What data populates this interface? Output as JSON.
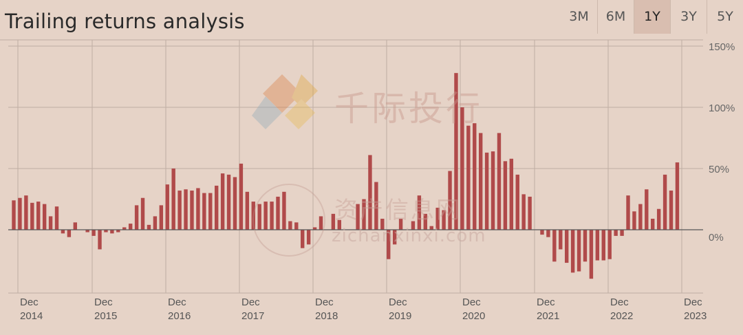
{
  "header": {
    "title": "Trailing returns analysis",
    "tabs": [
      {
        "label": "3M",
        "active": false
      },
      {
        "label": "6M",
        "active": false
      },
      {
        "label": "1Y",
        "active": true
      },
      {
        "label": "3Y",
        "active": false
      },
      {
        "label": "5Y",
        "active": false
      }
    ]
  },
  "watermark": {
    "line1": "千际投行",
    "line2": "资产信息网",
    "line3": "zichanxinxi.com"
  },
  "colors": {
    "bar": "#b04a4a",
    "grid": "#bfaea3",
    "axis": "#555555",
    "background": "#e6d3c7"
  },
  "chart_data": {
    "type": "bar",
    "title": "Trailing returns analysis",
    "xlabel": "",
    "ylabel": "",
    "ylim": [
      -50,
      150
    ],
    "yticks": [
      0,
      50,
      100,
      150
    ],
    "ytick_labels": [
      "0%",
      "50%",
      "100%",
      "150%"
    ],
    "grid": true,
    "x_tick_labels": [
      {
        "month": "Dec",
        "year": "2014"
      },
      {
        "month": "Dec",
        "year": "2015"
      },
      {
        "month": "Dec",
        "year": "2016"
      },
      {
        "month": "Dec",
        "year": "2017"
      },
      {
        "month": "Dec",
        "year": "2018"
      },
      {
        "month": "Dec",
        "year": "2019"
      },
      {
        "month": "Dec",
        "year": "2020"
      },
      {
        "month": "Dec",
        "year": "2021"
      },
      {
        "month": "Dec",
        "year": "2022"
      },
      {
        "month": "Dec",
        "year": "2023"
      }
    ],
    "start": "2014-10",
    "series": [
      {
        "values": [
          24,
          26,
          28,
          22,
          23,
          21,
          11,
          19,
          -3,
          -6,
          6,
          0,
          -2,
          -5,
          -16,
          -2,
          -3,
          -2,
          2,
          5,
          20,
          26,
          4,
          11,
          20,
          37,
          50,
          32,
          33,
          32,
          34,
          30,
          30,
          36,
          46,
          45,
          43,
          54,
          31,
          23,
          21,
          23,
          23,
          27,
          31,
          7,
          6,
          -15,
          -12,
          2,
          11,
          0,
          13,
          8,
          0,
          0,
          21,
          25,
          61,
          39,
          9,
          -24,
          -12,
          9,
          0,
          7,
          28,
          13,
          3,
          18,
          16,
          48,
          128,
          100,
          85,
          87,
          79,
          63,
          64,
          79,
          56,
          58,
          45,
          29,
          27,
          0,
          -4,
          -6,
          -26,
          -16,
          -27,
          -35,
          -34,
          -26,
          -40,
          -25,
          -25,
          -24,
          -5,
          -5,
          28,
          15,
          21,
          33,
          9,
          17,
          45,
          32,
          55
        ]
      }
    ]
  }
}
